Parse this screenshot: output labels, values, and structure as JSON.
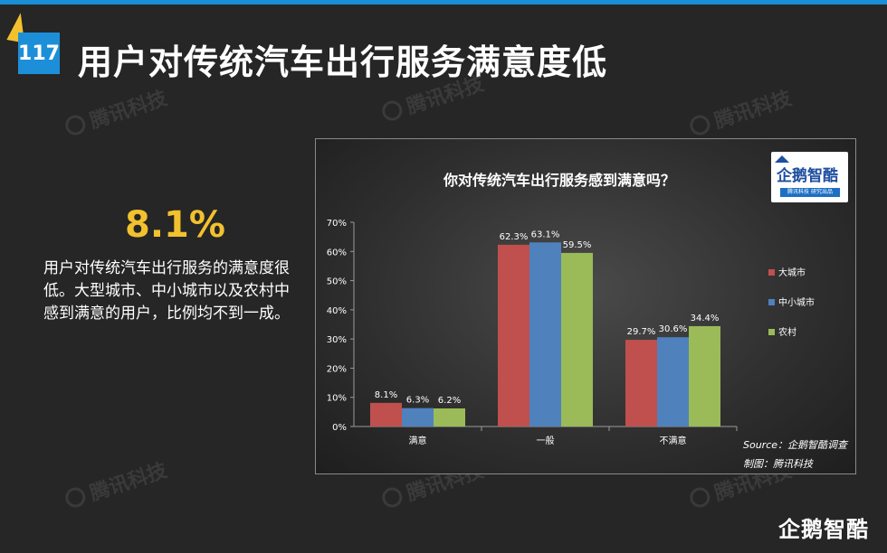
{
  "page": {
    "number": "117",
    "title": "用户对传统汽车出行服务满意度低"
  },
  "watermark": "腾讯科技",
  "summary": {
    "highlight": "8.1%",
    "text": "用户对传统汽车出行服务的满意度很低。大型城市、中小城市以及农村中感到满意的用户，比例均不到一成。"
  },
  "logo": {
    "name": "企鹅智酷",
    "tagline": "腾讯科技 研究出品"
  },
  "source": "Source：企鹅智酷调查",
  "credit": "制图：腾讯科技",
  "bottom_logo": "企鹅智酷",
  "chart_data": {
    "type": "bar",
    "title": "你对传统汽车出行服务感到满意吗？",
    "categories": [
      "满意",
      "一般",
      "不满意"
    ],
    "series": [
      {
        "name": "大城市",
        "values": [
          8.1,
          62.3,
          29.7
        ],
        "labels": [
          "8.1%",
          "62.3%",
          "29.7%"
        ],
        "color": "#c0504d"
      },
      {
        "name": "中小城市",
        "values": [
          6.3,
          63.1,
          30.6
        ],
        "labels": [
          "6.3%",
          "63.1%",
          "30.6%"
        ],
        "color": "#4f81bd"
      },
      {
        "name": "农村",
        "values": [
          6.2,
          59.5,
          34.4
        ],
        "labels": [
          "6.2%",
          "59.5%",
          "34.4%"
        ],
        "color": "#9bbb59"
      }
    ],
    "ylim": [
      0,
      70
    ],
    "yticks": [
      "0%",
      "10%",
      "20%",
      "30%",
      "40%",
      "50%",
      "60%",
      "70%"
    ],
    "legend": "right",
    "grid": false
  }
}
